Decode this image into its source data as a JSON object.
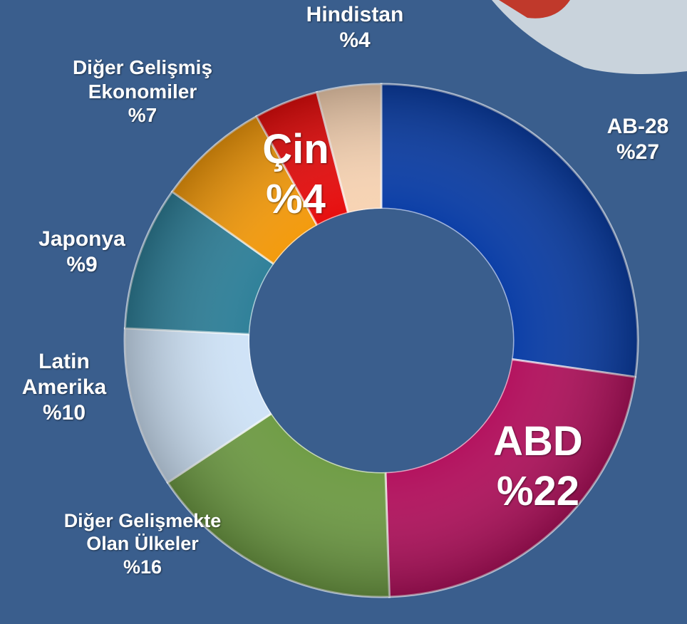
{
  "chart_data": {
    "type": "donut",
    "categories": [
      "AB-28",
      "ABD",
      "Diğer Gelişmekte Olan Ülkeler",
      "Latin Amerika",
      "Japonya",
      "Diğer Gelişmiş Ekonomiler",
      "Çin",
      "Hindistan"
    ],
    "values": [
      27,
      22,
      16,
      10,
      9,
      7,
      4,
      4
    ],
    "value_labels": [
      "%27",
      "%22",
      "%16",
      "%10",
      "%9",
      "%7",
      "%4",
      "%4"
    ],
    "colors": [
      "#0b3ea6",
      "#b3125e",
      "#6f9c45",
      "#cfe3f7",
      "#2f8099",
      "#f39a0c",
      "#e60d0d",
      "#f7d3b3"
    ]
  }
}
